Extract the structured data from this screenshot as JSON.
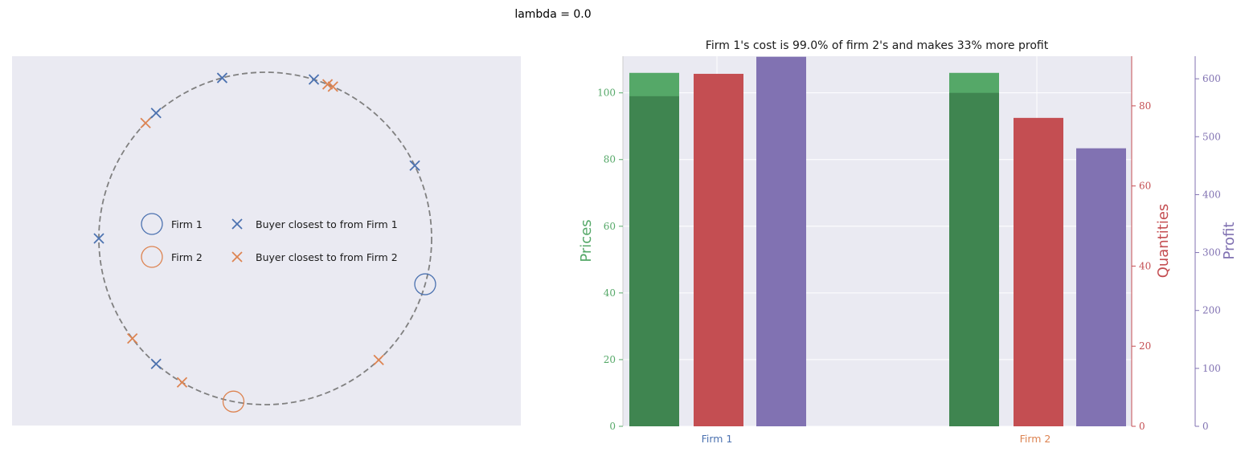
{
  "figure": {
    "suptitle": "lambda = 0.0"
  },
  "colors": {
    "firm1": "#4c72b0",
    "firm2": "#dd8452",
    "price": "#55a868",
    "price_dark": "#3f8550",
    "quantity": "#c44e52",
    "profit": "#8172b2",
    "panel_bg": "#eaeaf2",
    "circle": "#808080"
  },
  "chart_data": [
    {
      "type": "scatter",
      "title": "",
      "circle": {
        "radius": 1.0,
        "style": "dashed"
      },
      "firms": [
        {
          "name": "Firm 1",
          "angle_deg": -16,
          "color": "#4c72b0"
        },
        {
          "name": "Firm 2",
          "angle_deg": -101,
          "color": "#dd8452"
        }
      ],
      "buyers": [
        {
          "angle_deg": 73,
          "firm": 1
        },
        {
          "angle_deg": 105,
          "firm": 1
        },
        {
          "angle_deg": 131,
          "firm": 1
        },
        {
          "angle_deg": 180,
          "firm": 1
        },
        {
          "angle_deg": 26,
          "firm": 1
        },
        {
          "angle_deg": -131,
          "firm": 1
        },
        {
          "angle_deg": 136,
          "firm": 2
        },
        {
          "angle_deg": 68,
          "firm": 2
        },
        {
          "angle_deg": 66,
          "firm": 2
        },
        {
          "angle_deg": -47,
          "firm": 2
        },
        {
          "angle_deg": -120,
          "firm": 2
        },
        {
          "angle_deg": -143,
          "firm": 2
        }
      ],
      "legend": [
        {
          "label": "Firm 1",
          "marker": "circle",
          "color": "#4c72b0"
        },
        {
          "label": "Firm 2",
          "marker": "circle",
          "color": "#dd8452"
        },
        {
          "label": "Buyer closest to from Firm 1",
          "marker": "x",
          "color": "#4c72b0"
        },
        {
          "label": "Buyer closest to from Firm 2",
          "marker": "x",
          "color": "#dd8452"
        }
      ],
      "legend_position": "center"
    },
    {
      "type": "bar",
      "title": "Firm 1's cost is 99.0% of firm 2's and makes 33% more profit",
      "categories": [
        "Firm 1",
        "Firm 2"
      ],
      "category_colors": [
        "#4c72b0",
        "#dd8452"
      ],
      "series": [
        {
          "name": "Prices",
          "axis": "left",
          "color": "#55a868",
          "values": [
            106.0,
            106.0
          ],
          "cost_values": [
            99.0,
            100.0
          ]
        },
        {
          "name": "Quantities",
          "axis": "right1",
          "color": "#c44e52",
          "values": [
            88.0,
            77.0
          ]
        },
        {
          "name": "Profit",
          "axis": "right2",
          "color": "#8172b2",
          "values": [
            638,
            480
          ]
        }
      ],
      "axes": {
        "left": {
          "label": "Prices",
          "ylim": [
            0,
            111
          ],
          "ticks": [
            0,
            20,
            40,
            60,
            80,
            100
          ],
          "color": "#55a868"
        },
        "right1": {
          "label": "Quantities",
          "ylim": [
            0,
            92.4
          ],
          "ticks": [
            0,
            20,
            40,
            60,
            80
          ],
          "color": "#c44e52"
        },
        "right2": {
          "label": "Profit",
          "ylim": [
            0,
            639
          ],
          "ticks": [
            0,
            100,
            200,
            300,
            400,
            500,
            600
          ],
          "color": "#8172b2"
        }
      },
      "grid": true
    }
  ]
}
